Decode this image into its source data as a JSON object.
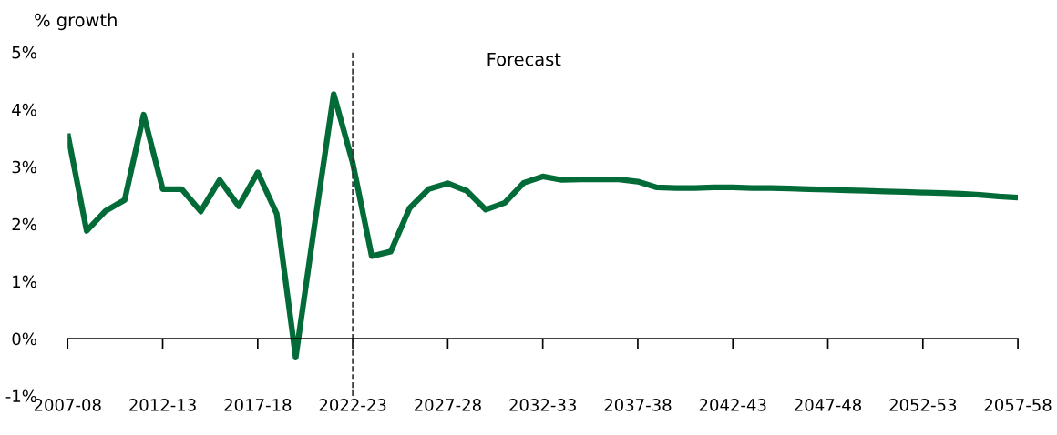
{
  "chart_data": {
    "type": "line",
    "ylabel": "% growth",
    "categories": [
      "2007-08",
      null,
      null,
      null,
      null,
      "2012-13",
      null,
      null,
      null,
      null,
      "2017-18",
      null,
      null,
      null,
      null,
      "2022-23",
      null,
      null,
      null,
      null,
      "2027-28",
      null,
      null,
      null,
      null,
      "2032-33",
      null,
      null,
      null,
      null,
      "2037-38",
      null,
      null,
      null,
      null,
      "2042-43",
      null,
      null,
      null,
      null,
      "2047-48",
      null,
      null,
      null,
      null,
      "2052-53",
      null,
      null,
      null,
      null,
      "2057-58"
    ],
    "series": [
      {
        "color": "#036b38",
        "values": [
          3.58,
          1.88,
          2.23,
          2.42,
          3.91,
          2.61,
          2.61,
          2.22,
          2.77,
          2.31,
          2.9,
          2.18,
          -0.33,
          2.0,
          4.27,
          3.07,
          1.44,
          1.52,
          2.28,
          2.61,
          2.71,
          2.58,
          2.25,
          2.37,
          2.72,
          2.83,
          2.77,
          2.78,
          2.78,
          2.78,
          2.74,
          2.64,
          2.63,
          2.63,
          2.64,
          2.64,
          2.63,
          2.63,
          2.62,
          2.61,
          2.6,
          2.59,
          2.58,
          2.57,
          2.56,
          2.55,
          2.54,
          2.53,
          2.51,
          2.48,
          2.46
        ]
      }
    ],
    "ylim": [
      -1,
      5
    ],
    "yticks": [
      {
        "value": -1,
        "label": "-1%"
      },
      {
        "value": 0,
        "label": "0%"
      },
      {
        "value": 1,
        "label": "1%"
      },
      {
        "value": 2,
        "label": "2%"
      },
      {
        "value": 3,
        "label": "3%"
      },
      {
        "value": 4,
        "label": "4%"
      },
      {
        "value": 5,
        "label": "5%"
      }
    ],
    "ref_lines": [
      {
        "axis": "x",
        "value": "2022-23",
        "color": "#333333",
        "line_style": "dashed"
      }
    ],
    "annotations": [
      "Forecast"
    ],
    "grid": false,
    "legend": false,
    "marker": "none",
    "line_style": "solid"
  }
}
